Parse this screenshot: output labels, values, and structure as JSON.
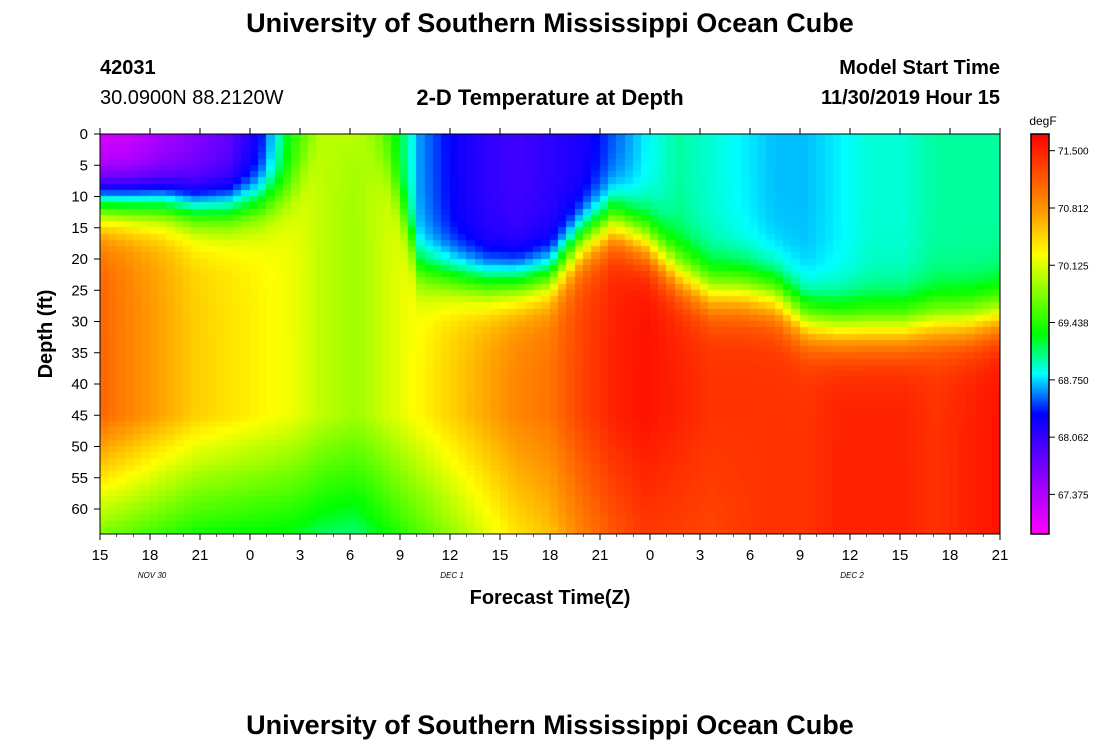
{
  "header": {
    "title": "University of Southern Mississippi Ocean Cube",
    "station_id": "42031",
    "location": "30.0900N 88.2120W",
    "subtitle": "2-D Temperature at Depth",
    "model_start_label": "Model Start Time",
    "model_start_value": "11/30/2019 Hour 15"
  },
  "footer": {
    "title": "University of Southern Mississippi Ocean Cube"
  },
  "chart_data": {
    "type": "heatmap",
    "title": "2-D Temperature at Depth",
    "xlabel": "Forecast Time(Z)",
    "ylabel": "Depth (ft)",
    "x_tick_labels": [
      "15",
      "18",
      "21",
      "0",
      "3",
      "6",
      "9",
      "12",
      "15",
      "18",
      "21",
      "0",
      "3",
      "6",
      "9",
      "12",
      "15",
      "18",
      "21"
    ],
    "x_range_hours": [
      0,
      54
    ],
    "date_labels": [
      {
        "text": "NOV  30",
        "hour": 3
      },
      {
        "text": "DEC  1",
        "hour": 21
      },
      {
        "text": "DEC  2",
        "hour": 45
      }
    ],
    "y_tick_labels": [
      "0",
      "5",
      "10",
      "15",
      "20",
      "25",
      "30",
      "35",
      "40",
      "45",
      "50",
      "55",
      "60"
    ],
    "ylim": [
      0,
      64
    ],
    "y_inverted": true,
    "colorbar": {
      "unit": "degF",
      "labels": [
        "71.500",
        "70.812",
        "70.125",
        "69.438",
        "68.750",
        "68.062",
        "67.375"
      ],
      "range": [
        66.9,
        71.7
      ],
      "colors": [
        "#ff00ff",
        "#b000ff",
        "#5a00ff",
        "#0000ff",
        "#00ffff",
        "#00ff00",
        "#80ff00",
        "#ffff00",
        "#ffa000",
        "#ff5000",
        "#ff0000"
      ]
    },
    "grid": false,
    "hour_offset_of_first_tick": 15,
    "surface_temp_degF": [
      67.1,
      67.2,
      67.4,
      67.6,
      67.8,
      68.3,
      69.4,
      70.0,
      70.1,
      69.5,
      68.6,
      68.3,
      68.1,
      68.0,
      68.1,
      68.2,
      68.5,
      68.8,
      69.0,
      68.9,
      68.8,
      68.7,
      68.7,
      68.8,
      68.9,
      68.9,
      69.0,
      69.0,
      69.0
    ],
    "thermocline_depth_ft": [
      11,
      11,
      11,
      12,
      12,
      11,
      9,
      0,
      0,
      6,
      22,
      23,
      24,
      24,
      23,
      17,
      14,
      17,
      22,
      25,
      25,
      26,
      30,
      31,
      31,
      31,
      30,
      30,
      29
    ],
    "deep_temp_degF": [
      71.1,
      70.9,
      70.7,
      70.5,
      70.4,
      70.3,
      70.2,
      70.0,
      69.9,
      70.1,
      70.3,
      70.5,
      70.7,
      70.9,
      71.0,
      71.3,
      71.5,
      71.6,
      71.5,
      71.4,
      71.4,
      71.4,
      71.4,
      71.5,
      71.5,
      71.5,
      71.4,
      71.5,
      71.6
    ]
  }
}
